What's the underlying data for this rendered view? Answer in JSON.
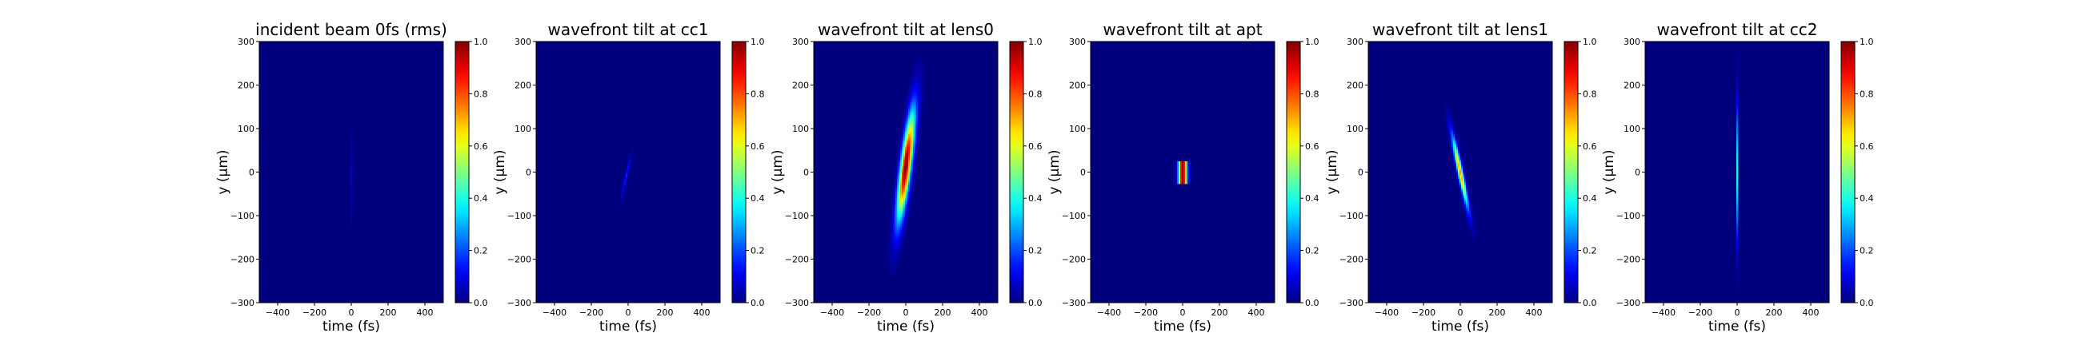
{
  "chart_data": [
    {
      "type": "heatmap",
      "title": "incident beam 0fs (rms)",
      "xlabel": "time (fs)",
      "ylabel": "y (μm)",
      "xlim": [
        -500,
        500
      ],
      "ylim": [
        -300,
        300
      ],
      "xticks": [
        -400,
        -200,
        0,
        200,
        400
      ],
      "yticks": [
        -300,
        -200,
        -100,
        0,
        100,
        200,
        300
      ],
      "colorbar": {
        "range": [
          0,
          1
        ],
        "ticks": [
          "0.0",
          "0.2",
          "0.4",
          "0.6",
          "0.8",
          "1.0"
        ],
        "colormap": "jet"
      },
      "features": [
        {
          "shape": "ellipse",
          "center_time_fs": 0,
          "center_y_um": -10,
          "half_width_fs": 6,
          "half_height_um": 90,
          "tilt_fs_per_um": 0,
          "peak": 0.06
        }
      ]
    },
    {
      "type": "heatmap",
      "title": "wavefront tilt at cc1",
      "xlabel": "time (fs)",
      "ylabel": "y (μm)",
      "xlim": [
        -500,
        500
      ],
      "ylim": [
        -300,
        300
      ],
      "xticks": [
        -400,
        -200,
        0,
        200,
        400
      ],
      "yticks": [
        -300,
        -200,
        -100,
        0,
        100,
        200,
        300
      ],
      "colorbar": {
        "range": [
          0,
          1
        ],
        "ticks": [
          "0.0",
          "0.2",
          "0.4",
          "0.6",
          "0.8",
          "1.0"
        ],
        "colormap": "jet"
      },
      "features": [
        {
          "shape": "ellipse",
          "center_time_fs": -10,
          "center_y_um": -10,
          "half_width_fs": 6,
          "half_height_um": 45,
          "tilt_fs_per_um": 0.5,
          "peak": 0.16
        }
      ]
    },
    {
      "type": "heatmap",
      "title": "wavefront tilt at lens0",
      "xlabel": "time (fs)",
      "ylabel": "y (μm)",
      "xlim": [
        -500,
        500
      ],
      "ylim": [
        -300,
        300
      ],
      "xticks": [
        -400,
        -200,
        0,
        200,
        400
      ],
      "yticks": [
        -300,
        -200,
        -100,
        0,
        100,
        200,
        300
      ],
      "colorbar": {
        "range": [
          0,
          1
        ],
        "ticks": [
          "0.0",
          "0.2",
          "0.4",
          "0.6",
          "0.8",
          "1.0"
        ],
        "colormap": "jet"
      },
      "features": [
        {
          "shape": "ellipse",
          "center_time_fs": 0,
          "center_y_um": 15,
          "half_width_fs": 28,
          "half_height_um": 120,
          "tilt_fs_per_um": 0.3,
          "peak": 1.0
        }
      ]
    },
    {
      "type": "heatmap",
      "title": "wavefront tilt at apt",
      "xlabel": "time (fs)",
      "ylabel": "y (μm)",
      "xlim": [
        -500,
        500
      ],
      "ylim": [
        -300,
        300
      ],
      "xticks": [
        -400,
        -200,
        0,
        200,
        400
      ],
      "yticks": [
        -300,
        -200,
        -100,
        0,
        100,
        200,
        300
      ],
      "colorbar": {
        "range": [
          0,
          1
        ],
        "ticks": [
          "0.0",
          "0.2",
          "0.4",
          "0.6",
          "0.8",
          "1.0"
        ],
        "colormap": "jet"
      },
      "features": [
        {
          "shape": "band",
          "center_time_fs": 0,
          "center_y_um": 0,
          "half_width_fs": 22,
          "y_range_um": [
            -25,
            25
          ],
          "peak": 1.0
        }
      ]
    },
    {
      "type": "heatmap",
      "title": "wavefront tilt at lens1",
      "xlabel": "time (fs)",
      "ylabel": "y (μm)",
      "xlim": [
        -500,
        500
      ],
      "ylim": [
        -300,
        300
      ],
      "xticks": [
        -400,
        -200,
        0,
        200,
        400
      ],
      "yticks": [
        -300,
        -200,
        -100,
        0,
        100,
        200,
        300
      ],
      "colorbar": {
        "range": [
          0,
          1
        ],
        "ticks": [
          "0.0",
          "0.2",
          "0.4",
          "0.6",
          "0.8",
          "1.0"
        ],
        "colormap": "jet"
      },
      "features": [
        {
          "shape": "ellipse",
          "center_time_fs": 0,
          "center_y_um": 0,
          "half_width_fs": 14,
          "half_height_um": 80,
          "tilt_fs_per_um": -0.5,
          "peak": 0.72
        }
      ]
    },
    {
      "type": "heatmap",
      "title": "wavefront tilt at cc2",
      "xlabel": "time (fs)",
      "ylabel": "y (μm)",
      "xlim": [
        -500,
        500
      ],
      "ylim": [
        -300,
        300
      ],
      "xticks": [
        -400,
        -200,
        0,
        200,
        400
      ],
      "yticks": [
        -300,
        -200,
        -100,
        0,
        100,
        200,
        300
      ],
      "colorbar": {
        "range": [
          0,
          1
        ],
        "ticks": [
          "0.0",
          "0.2",
          "0.4",
          "0.6",
          "0.8",
          "1.0"
        ],
        "colormap": "jet"
      },
      "features": [
        {
          "shape": "ellipse",
          "center_time_fs": 0,
          "center_y_um": 0,
          "half_width_fs": 4,
          "half_height_um": 150,
          "tilt_fs_per_um": 0,
          "peak": 0.38
        }
      ]
    }
  ]
}
